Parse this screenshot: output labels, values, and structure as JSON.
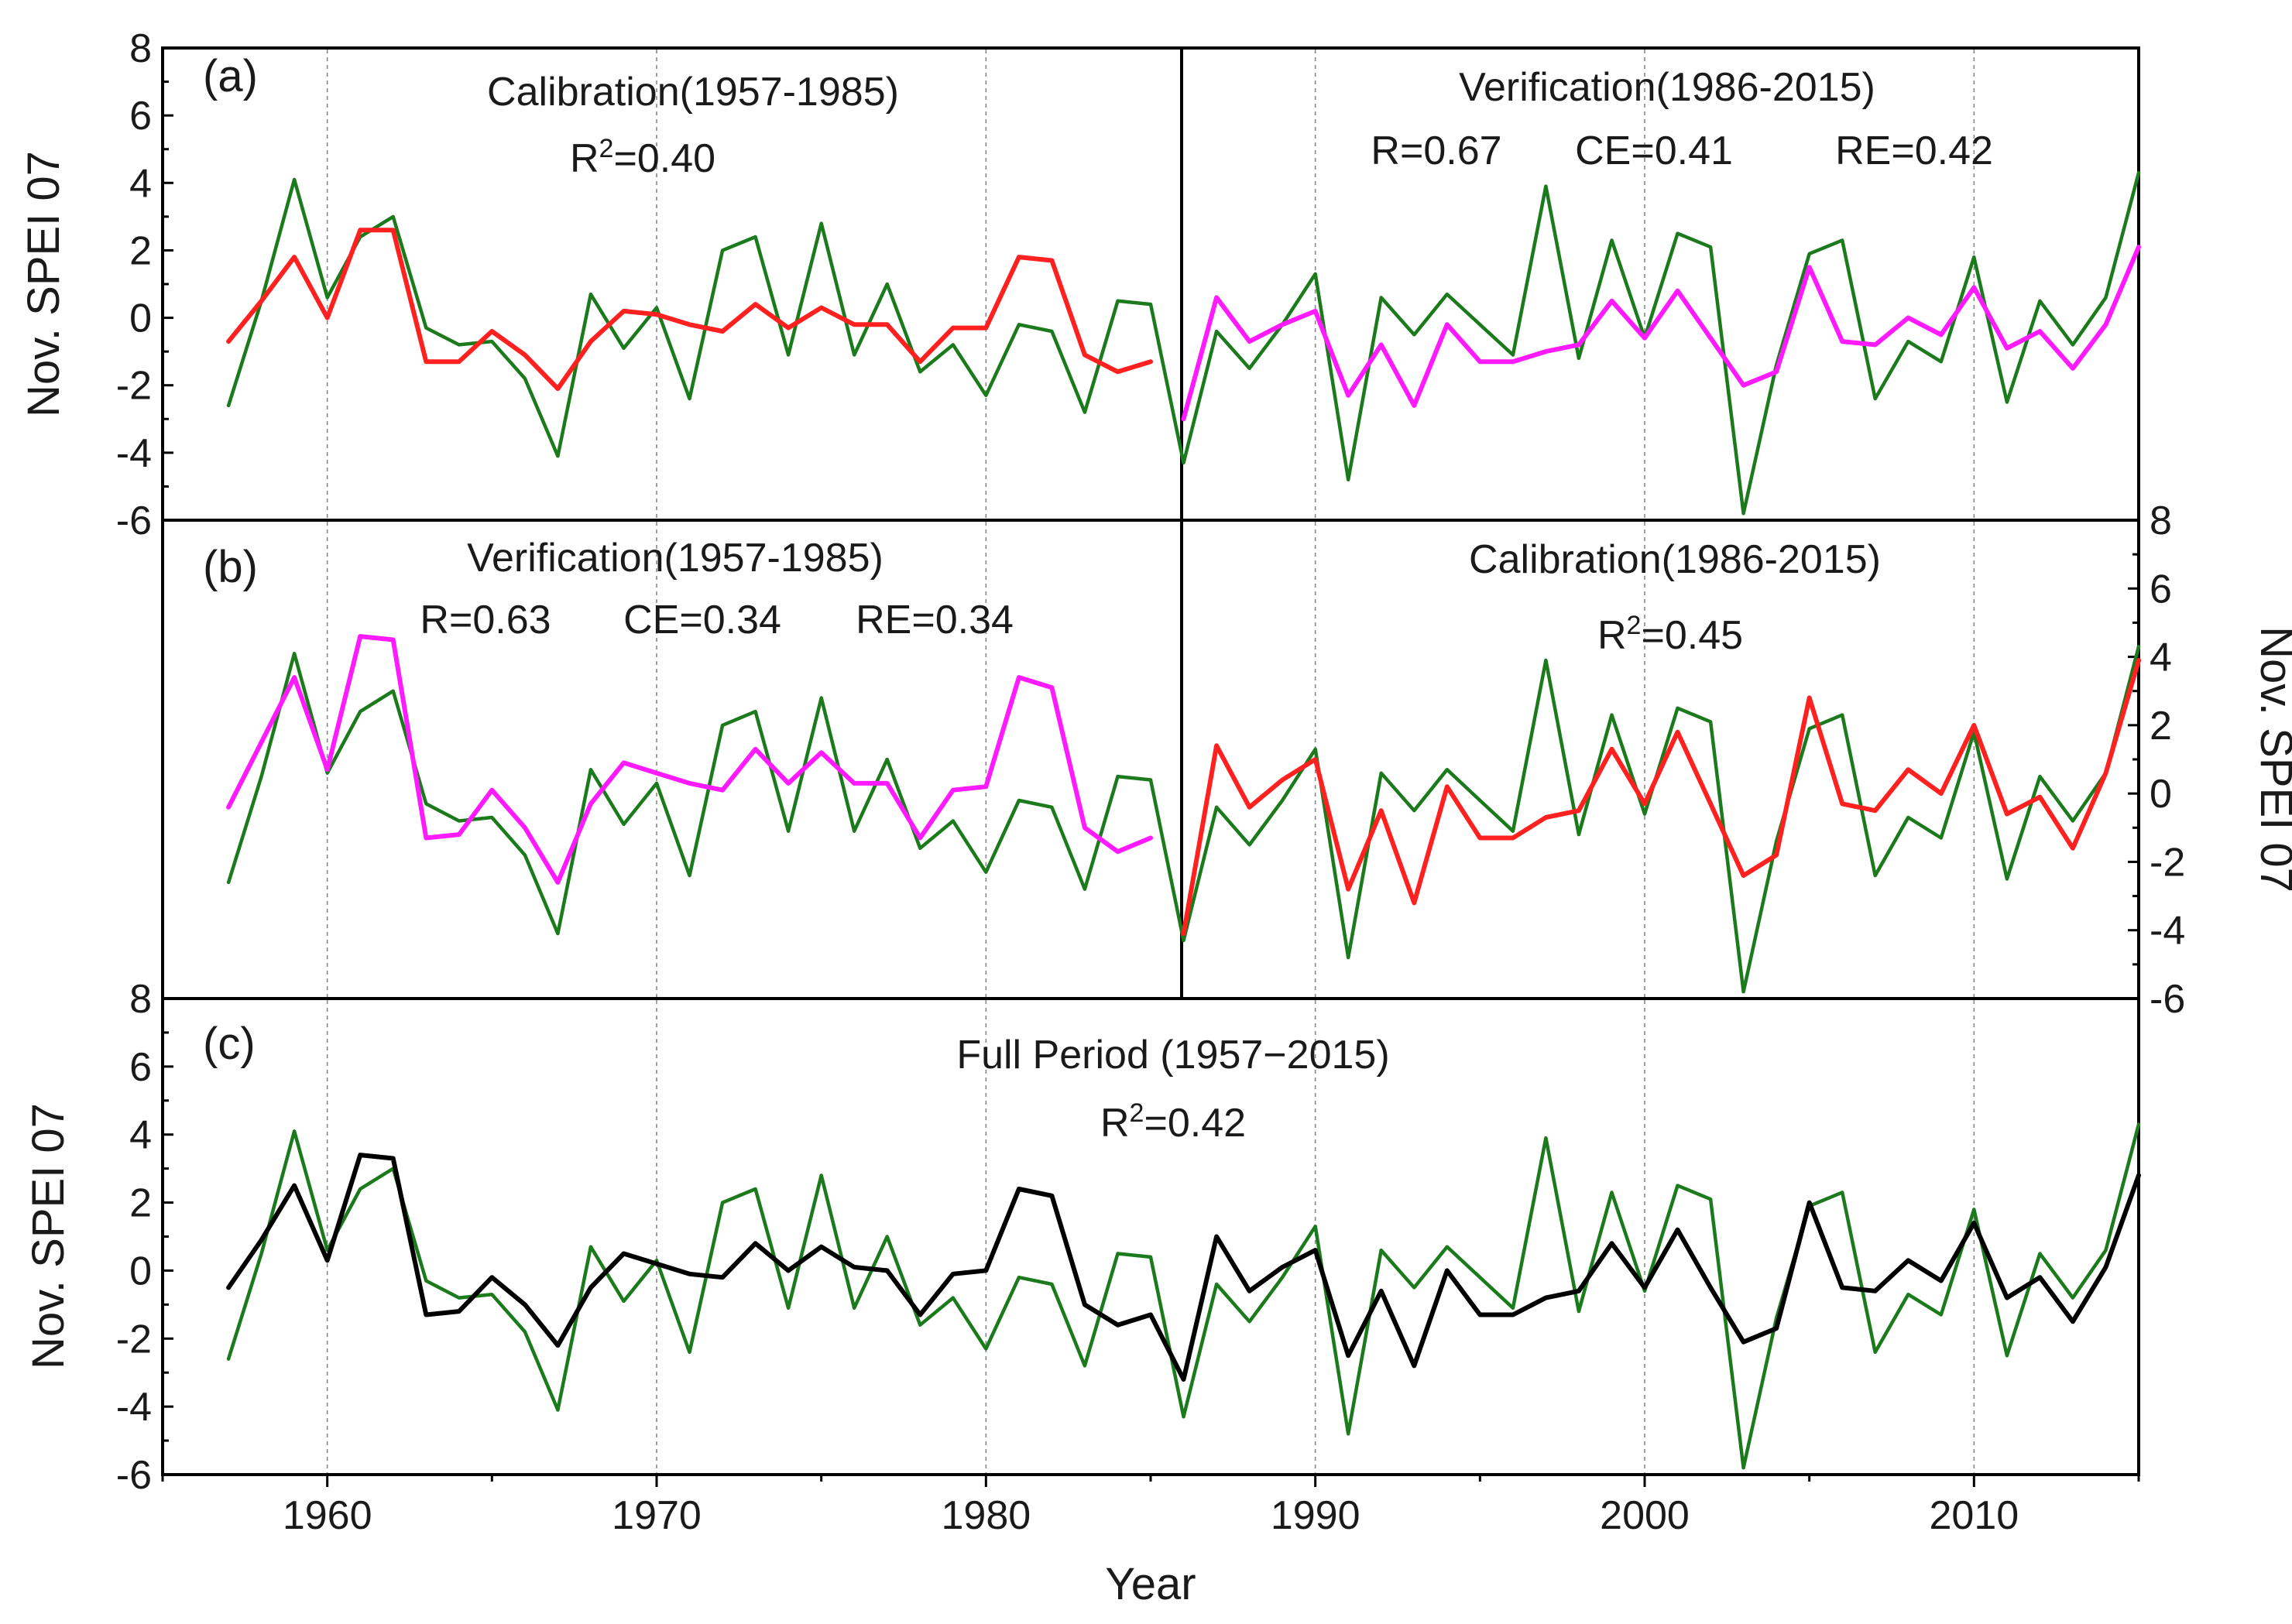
{
  "chart_data": {
    "type": "line",
    "x_axis": {
      "label": "Year",
      "range": [
        1955,
        2015
      ],
      "ticks": [
        1960,
        1970,
        1980,
        1990,
        2000,
        2010
      ],
      "tick_labels": [
        "1960",
        "1970",
        "1980",
        "1990",
        "2000",
        "2010"
      ],
      "grid": "dotted vertical lines at ticks"
    },
    "y_axis": {
      "label": "Nov. SPEI 07",
      "range": [
        -6,
        8
      ],
      "ticks": [
        -6,
        -4,
        -2,
        0,
        2,
        4,
        6,
        8
      ],
      "tick_labels": [
        "-6",
        "-4",
        "-2",
        "0",
        "2",
        "4",
        "6",
        "8"
      ]
    },
    "years": [
      1957,
      1958,
      1959,
      1960,
      1961,
      1962,
      1963,
      1964,
      1965,
      1966,
      1967,
      1968,
      1969,
      1970,
      1971,
      1972,
      1973,
      1974,
      1975,
      1976,
      1977,
      1978,
      1979,
      1980,
      1981,
      1982,
      1983,
      1984,
      1985,
      1986,
      1987,
      1988,
      1989,
      1990,
      1991,
      1992,
      1993,
      1994,
      1995,
      1996,
      1997,
      1998,
      1999,
      2000,
      2001,
      2002,
      2003,
      2004,
      2005,
      2006,
      2007,
      2008,
      2009,
      2010,
      2011,
      2012,
      2013,
      2014,
      2015
    ],
    "observed": {
      "name": "Observed Nov. SPEI 07",
      "color": "#1b7a1b",
      "values": [
        -2.6,
        0.5,
        4.1,
        0.6,
        2.4,
        3.0,
        -0.3,
        -0.8,
        -0.7,
        -1.8,
        -4.1,
        0.7,
        -0.9,
        0.3,
        -2.4,
        2.0,
        2.4,
        -1.1,
        2.8,
        -1.1,
        1.0,
        -1.6,
        -0.8,
        -2.3,
        -0.2,
        -0.4,
        -2.8,
        0.5,
        0.4,
        -4.3,
        -0.4,
        -1.5,
        -0.2,
        1.3,
        -4.8,
        0.6,
        -0.5,
        0.7,
        -0.2,
        -1.1,
        3.9,
        -1.2,
        2.3,
        -0.6,
        2.5,
        2.1,
        -5.8,
        -1.4,
        1.9,
        2.3,
        -2.4,
        -0.7,
        -1.3,
        1.8,
        -2.5,
        0.5,
        -0.8,
        0.6,
        4.3
      ]
    },
    "panels": [
      {
        "id": "a",
        "label": "(a)",
        "texts": {
          "left_title": "Calibration(1957-1985)",
          "left_stat": "R",
          "left_stat_sup": "2",
          "left_stat_value": "=0.40",
          "right_title": "Verification(1986-2015)",
          "right_stats": [
            "R=0.67",
            "CE=0.41",
            "RE=0.42"
          ]
        },
        "series": [
          {
            "name": "Calibration reconstruction 1957-1985",
            "color": "#ff2020",
            "start_year": 1957,
            "values": [
              -0.7,
              0.5,
              1.8,
              0.0,
              2.6,
              2.6,
              -1.3,
              -1.3,
              -0.4,
              -1.1,
              -2.1,
              -0.7,
              0.2,
              0.1,
              -0.2,
              -0.4,
              0.4,
              -0.3,
              0.3,
              -0.2,
              -0.2,
              -1.3,
              -0.3,
              -0.3,
              1.8,
              1.7,
              -1.1,
              -1.6,
              -1.3
            ]
          },
          {
            "name": "Verification reconstruction 1986-2015",
            "color": "#ff1aff",
            "start_year": 1986,
            "values": [
              -3.0,
              0.6,
              -0.7,
              -0.2,
              0.2,
              -2.3,
              -0.8,
              -2.6,
              -0.2,
              -1.3,
              -1.3,
              -1.0,
              -0.8,
              0.5,
              -0.6,
              0.8,
              -0.6,
              -2.0,
              -1.6,
              1.5,
              -0.7,
              -0.8,
              0.0,
              -0.5,
              0.9,
              -0.9,
              -0.4,
              -1.5,
              -0.2,
              2.1
            ]
          }
        ]
      },
      {
        "id": "b",
        "label": "(b)",
        "texts": {
          "left_title": "Verification(1957-1985)",
          "left_stats": [
            "R=0.63",
            "CE=0.34",
            "RE=0.34"
          ],
          "right_title": "Calibration(1986-2015)",
          "right_stat": "R",
          "right_stat_sup": "2",
          "right_stat_value": "=0.45"
        },
        "series": [
          {
            "name": "Verification reconstruction 1957-1985",
            "color": "#ff1aff",
            "start_year": 1957,
            "values": [
              -0.4,
              1.5,
              3.4,
              0.7,
              4.6,
              4.5,
              -1.3,
              -1.2,
              0.1,
              -1.0,
              -2.6,
              -0.3,
              0.9,
              0.6,
              0.3,
              0.1,
              1.3,
              0.3,
              1.2,
              0.3,
              0.3,
              -1.3,
              0.1,
              0.2,
              3.4,
              3.1,
              -1.0,
              -1.7,
              -1.3
            ]
          },
          {
            "name": "Calibration reconstruction 1986-2015",
            "color": "#ff2020",
            "start_year": 1986,
            "values": [
              -4.1,
              1.4,
              -0.4,
              0.4,
              1.0,
              -2.8,
              -0.5,
              -3.2,
              0.2,
              -1.3,
              -1.3,
              -0.7,
              -0.5,
              1.3,
              -0.3,
              1.8,
              -0.3,
              -2.4,
              -1.8,
              2.8,
              -0.3,
              -0.5,
              0.7,
              0.0,
              2.0,
              -0.6,
              -0.1,
              -1.6,
              0.6,
              3.9
            ]
          }
        ]
      },
      {
        "id": "c",
        "label": "(c)",
        "texts": {
          "title": "Full Period (1957−2015)",
          "stat": "R",
          "stat_sup": "2",
          "stat_value": "=0.42"
        },
        "series": [
          {
            "name": "Full period reconstruction 1957-2015",
            "color": "#000000",
            "start_year": 1957,
            "values": [
              -0.5,
              0.9,
              2.5,
              0.3,
              3.4,
              3.3,
              -1.3,
              -1.2,
              -0.2,
              -1.0,
              -2.2,
              -0.5,
              0.5,
              0.2,
              -0.1,
              -0.2,
              0.8,
              0.0,
              0.7,
              0.1,
              0.0,
              -1.3,
              -0.1,
              0.0,
              2.4,
              2.2,
              -1.0,
              -1.6,
              -1.3,
              -3.2,
              1.0,
              -0.6,
              0.1,
              0.6,
              -2.5,
              -0.6,
              -2.8,
              0.0,
              -1.3,
              -1.3,
              -0.8,
              -0.6,
              0.8,
              -0.5,
              1.2,
              -0.5,
              -2.1,
              -1.7,
              2.0,
              -0.5,
              -0.6,
              0.3,
              -0.3,
              1.4,
              -0.8,
              -0.2,
              -1.5,
              0.1,
              2.8
            ]
          }
        ]
      }
    ]
  }
}
